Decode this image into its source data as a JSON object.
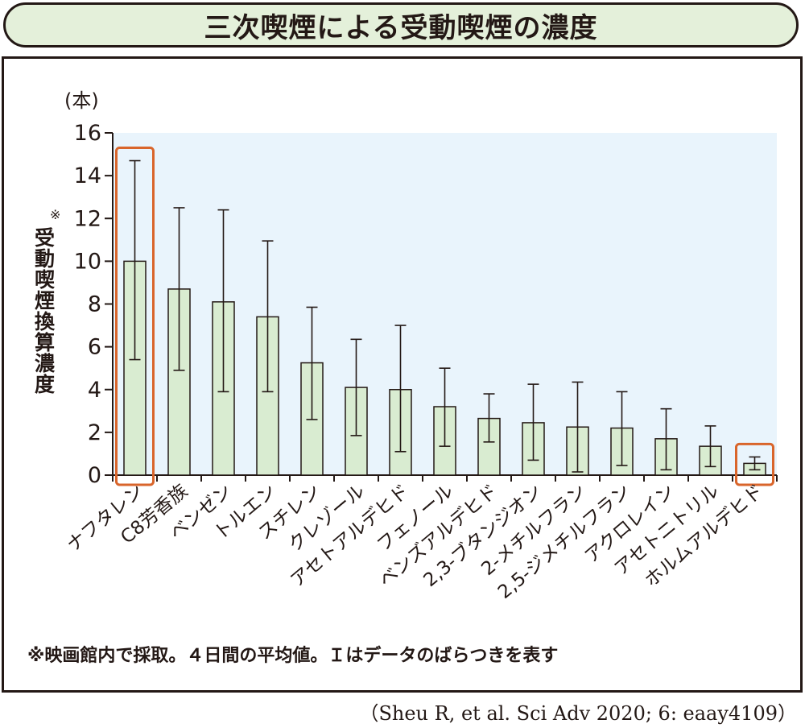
{
  "title": "三次喫煙による受動喫煙の濃度",
  "chart_data": {
    "type": "bar",
    "y_unit": "(本)",
    "ylabel_mark": "※",
    "ylabel": "受動喫煙換算濃度",
    "ylim": [
      0,
      16
    ],
    "yticks": [
      "0",
      "2",
      "4",
      "6",
      "8",
      "10",
      "12",
      "14",
      "16"
    ],
    "categories": [
      "ナフタレン",
      "C8芳香族",
      "ベンゼン",
      "トルエン",
      "スチレン",
      "クレゾール",
      "アセトアルデヒド",
      "フェノール",
      "ベンズアルデヒド",
      "2,3-ブタンジオン",
      "2-メチルフラン",
      "2,5-ジメチルフラン",
      "アクロレイン",
      "アセトニトリル",
      "ホルムアルデヒド"
    ],
    "values": [
      10.0,
      8.7,
      8.1,
      7.4,
      5.25,
      4.1,
      4.0,
      3.2,
      2.65,
      2.45,
      2.25,
      2.2,
      1.7,
      1.35,
      0.55
    ],
    "err_low": [
      5.4,
      4.9,
      3.9,
      3.9,
      2.6,
      1.85,
      1.1,
      1.35,
      1.55,
      0.7,
      0.15,
      0.45,
      0.25,
      0.4,
      0.25
    ],
    "err_high": [
      14.7,
      12.5,
      12.4,
      10.95,
      7.85,
      6.35,
      7.0,
      5.0,
      3.8,
      4.25,
      4.35,
      3.9,
      3.1,
      2.3,
      0.85
    ],
    "highlighted": [
      "ナフタレン",
      "ホルムアルデヒド"
    ],
    "grid": false,
    "colors": {
      "bar_fill": "#d9ecd1",
      "bar_stroke": "#231815",
      "plot_bg": "#e9f4fc",
      "highlight": "#d9652b",
      "title_bg": "#e4f0da"
    }
  },
  "footnote": "※映画館内で採取。４日間の平均値。Ｉはデータのばらつきを表す",
  "citation": "（Sheu R, et al. Sci Adv 2020; 6: eaay4109）"
}
